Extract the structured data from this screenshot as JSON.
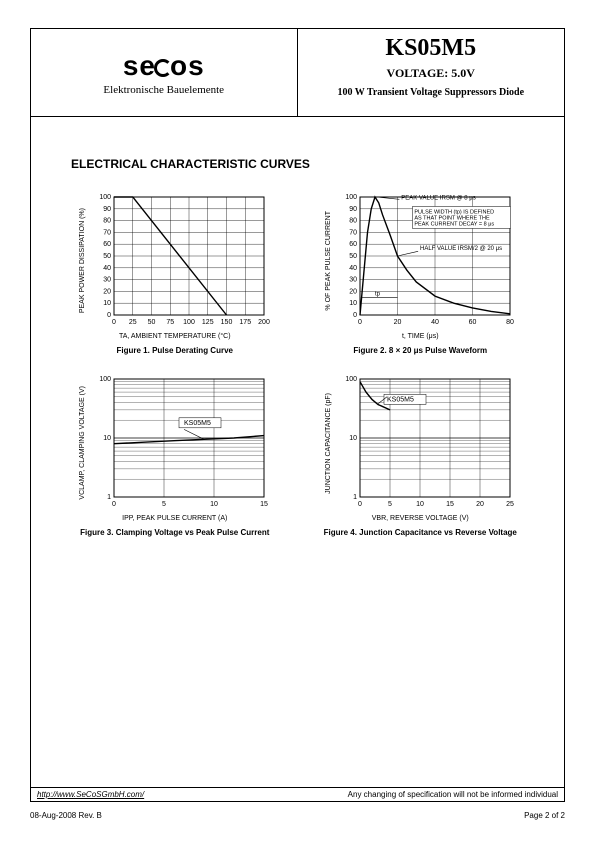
{
  "header": {
    "brand": "secos",
    "subtitle": "Elektronische Bauelemente",
    "part_number": "KS05M5",
    "voltage_label": "VOLTAGE: 5.0V",
    "description": "100 W Transient Voltage Suppressors Diode"
  },
  "section_title": "ELECTRICAL CHARACTERISTIC CURVES",
  "chart1": {
    "type": "line",
    "title": "Figure 1. Pulse Derating Curve",
    "xlabel": "TA, AMBIENT TEMPERATURE (°C)",
    "ylabel": "PEAK POWER DISSIPATION (%)",
    "xlim": [
      0,
      200
    ],
    "xtick_step": 25,
    "ylim": [
      0,
      100
    ],
    "ytick_step": 10,
    "line_color": "#000000",
    "line_width": 1.4,
    "grid_color": "#000000",
    "background_color": "#ffffff",
    "tick_fontsize": 7,
    "data": [
      [
        0,
        100
      ],
      [
        25,
        100
      ],
      [
        150,
        0
      ]
    ]
  },
  "chart2": {
    "type": "line",
    "title": "Figure 2. 8 × 20 μs Pulse Waveform",
    "xlabel": "t, TIME (μs)",
    "ylabel": "% OF PEAK PULSE CURRENT",
    "xlim": [
      0,
      80
    ],
    "xtick_step": 20,
    "ylim": [
      0,
      100
    ],
    "ytick_step": 10,
    "line_color": "#000000",
    "line_width": 1.4,
    "grid_color": "#000000",
    "background_color": "#ffffff",
    "tick_fontsize": 7,
    "annotations": {
      "peak": "PEAK VALUE IRSM @ 8 μs",
      "pulse_note": "PULSE WIDTH (tp) IS DEFINED AS THAT POINT WHERE THE PEAK CURRENT DECAY = 8 μs",
      "half": "HALF VALUE IRSM/2 @ 20 μs",
      "tp": "tp"
    },
    "data": [
      [
        0,
        0
      ],
      [
        2,
        35
      ],
      [
        4,
        70
      ],
      [
        6,
        90
      ],
      [
        8,
        100
      ],
      [
        10,
        95
      ],
      [
        12,
        85
      ],
      [
        16,
        68
      ],
      [
        20,
        50
      ],
      [
        25,
        38
      ],
      [
        30,
        28
      ],
      [
        40,
        16
      ],
      [
        50,
        10
      ],
      [
        60,
        6
      ],
      [
        70,
        3
      ],
      [
        80,
        1
      ]
    ]
  },
  "chart3": {
    "type": "line-logy",
    "title": "Figure 3. Clamping Voltage vs Peak Pulse Current",
    "xlabel": "IPP, PEAK PULSE CURRENT (A)",
    "ylabel": "VCLAMP, CLAMPING VOLTAGE (V)",
    "xlim": [
      0,
      15
    ],
    "xtick_step": 5,
    "ylim": [
      1,
      100
    ],
    "yticks": [
      1,
      10,
      100
    ],
    "line_color": "#000000",
    "line_width": 1.4,
    "grid_color": "#000000",
    "background_color": "#ffffff",
    "tick_fontsize": 7,
    "series_label": "KS05M5",
    "data": [
      [
        0,
        8
      ],
      [
        3,
        8.5
      ],
      [
        6,
        9
      ],
      [
        9,
        9.5
      ],
      [
        12,
        10
      ],
      [
        15,
        11
      ]
    ]
  },
  "chart4": {
    "type": "line-logy",
    "title": "Figure 4. Junction Capacitance vs Reverse Voltage",
    "xlabel": "VBR, REVERSE VOLTAGE (V)",
    "ylabel": "JUNCTION CAPACITANCE (pF)",
    "xlim": [
      0,
      25
    ],
    "xtick_step": 5,
    "ylim": [
      1,
      100
    ],
    "yticks": [
      1,
      10,
      100
    ],
    "line_color": "#000000",
    "line_width": 1.4,
    "grid_color": "#000000",
    "background_color": "#ffffff",
    "tick_fontsize": 7,
    "series_label": "KS05M5",
    "data": [
      [
        0,
        90
      ],
      [
        1,
        60
      ],
      [
        2,
        45
      ],
      [
        3,
        37
      ],
      [
        5,
        30
      ]
    ]
  },
  "footer": {
    "url": "http://www.SeCoSGmbH.com/",
    "disclaimer": "Any changing of specification will not be informed individual",
    "date_rev": "08-Aug-2008 Rev. B",
    "page": "Page 2 of 2"
  }
}
